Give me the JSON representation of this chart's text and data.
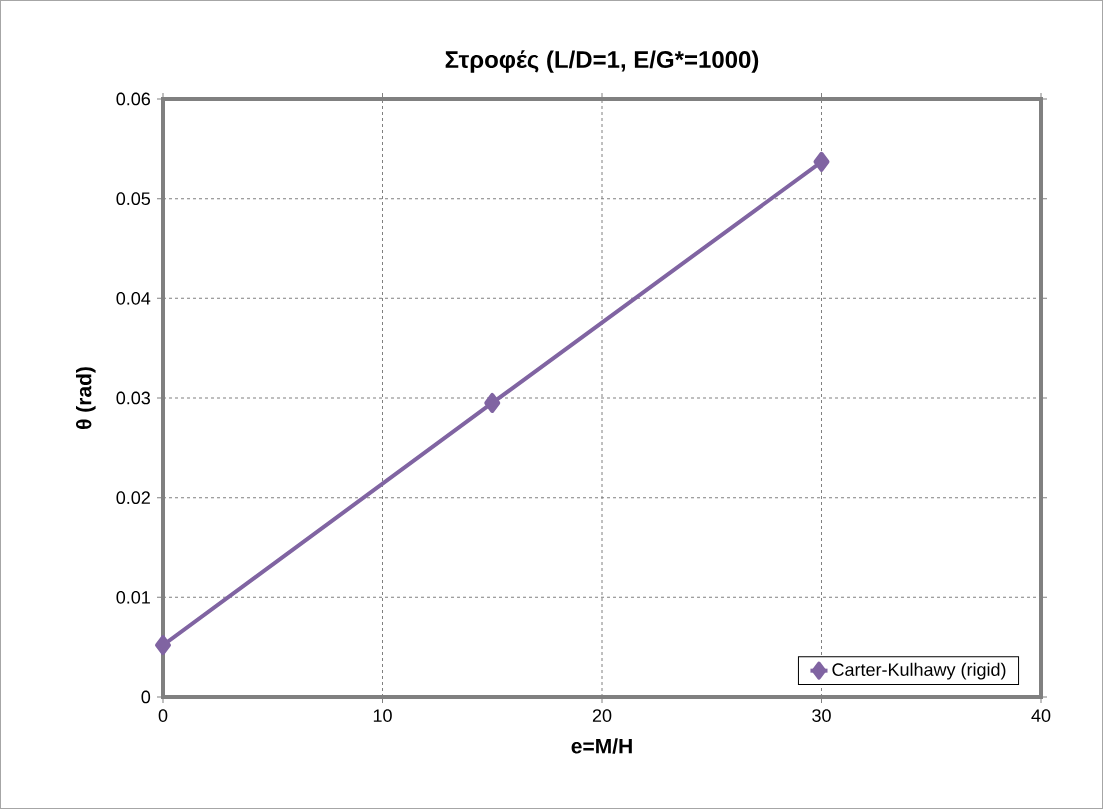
{
  "chart_data": {
    "type": "line",
    "title": "Στροφές (L/D=1, E/G*=1000)",
    "xlabel": "e=M/H",
    "ylabel": "θ (rad)",
    "x": [
      0,
      15,
      30
    ],
    "series": [
      {
        "name": "Carter-Kulhawy (rigid)",
        "color": "#8064a2",
        "values": [
          0.0052,
          0.0295,
          0.0537
        ]
      }
    ],
    "xlim": [
      0,
      40
    ],
    "ylim": [
      0,
      0.06
    ],
    "xticks": [
      0,
      10,
      20,
      30,
      40
    ],
    "yticks": [
      0,
      0.01,
      0.02,
      0.03,
      0.04,
      0.05,
      0.06
    ],
    "grid": true,
    "legend": "bottom right",
    "marker": "diamond",
    "line_style": "solid"
  }
}
